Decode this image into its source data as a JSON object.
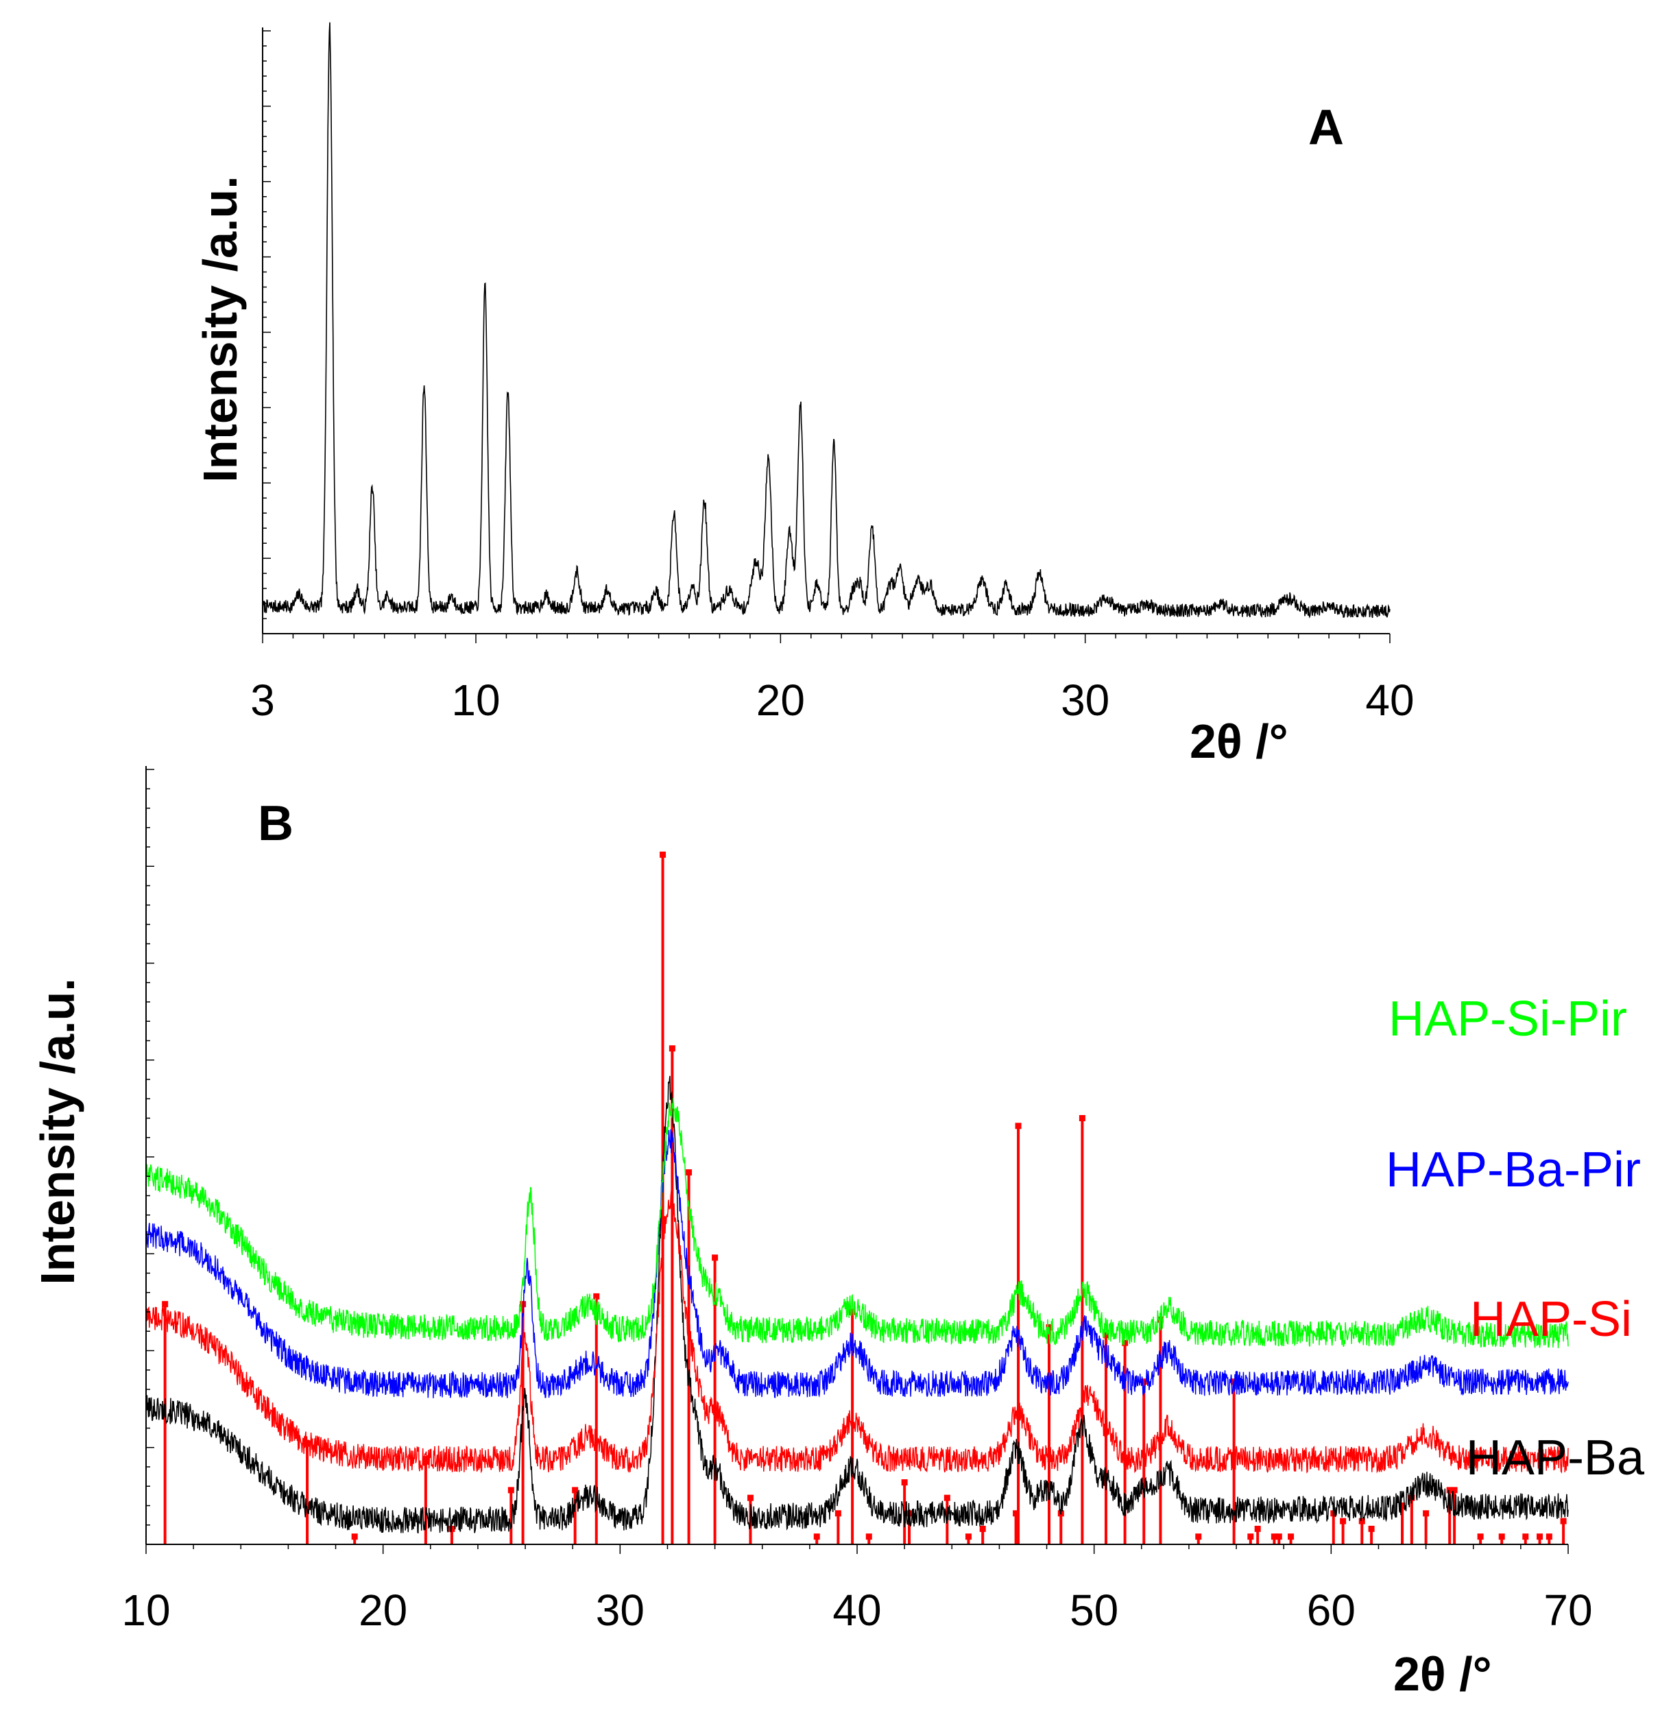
{
  "chart_data": [
    {
      "panel": "A",
      "type": "line",
      "title": "",
      "panel_label": "A",
      "xlabel": "2θ /°",
      "ylabel": "Intensity /a.u.",
      "xlim": [
        3,
        40
      ],
      "ylim": [
        0,
        100
      ],
      "x_ticks": [
        3,
        10,
        20,
        30,
        40
      ],
      "x_tick_labels": [
        "3",
        "10",
        "20",
        "30",
        "40"
      ],
      "grid": false,
      "baseline": 4.5,
      "line_color": "#000000",
      "peaks": [
        {
          "x": 4.2,
          "h": 2,
          "w": 0.1
        },
        {
          "x": 5.2,
          "h": 96,
          "w": 0.09
        },
        {
          "x": 6.1,
          "h": 3,
          "w": 0.08
        },
        {
          "x": 6.6,
          "h": 20,
          "w": 0.08
        },
        {
          "x": 7.1,
          "h": 2,
          "w": 0.08
        },
        {
          "x": 8.3,
          "h": 37,
          "w": 0.08
        },
        {
          "x": 9.2,
          "h": 2,
          "w": 0.08
        },
        {
          "x": 10.3,
          "h": 53,
          "w": 0.08
        },
        {
          "x": 11.05,
          "h": 36,
          "w": 0.08
        },
        {
          "x": 12.3,
          "h": 2,
          "w": 0.1
        },
        {
          "x": 13.3,
          "h": 6,
          "w": 0.1
        },
        {
          "x": 14.3,
          "h": 3,
          "w": 0.1
        },
        {
          "x": 15.9,
          "h": 3,
          "w": 0.1
        },
        {
          "x": 16.5,
          "h": 16,
          "w": 0.09
        },
        {
          "x": 17.1,
          "h": 4,
          "w": 0.1
        },
        {
          "x": 17.5,
          "h": 18,
          "w": 0.09
        },
        {
          "x": 18.3,
          "h": 3,
          "w": 0.15
        },
        {
          "x": 19.2,
          "h": 8,
          "w": 0.14
        },
        {
          "x": 19.6,
          "h": 25,
          "w": 0.1
        },
        {
          "x": 20.3,
          "h": 13,
          "w": 0.1
        },
        {
          "x": 20.65,
          "h": 34,
          "w": 0.09
        },
        {
          "x": 21.2,
          "h": 4,
          "w": 0.1
        },
        {
          "x": 21.75,
          "h": 28,
          "w": 0.08
        },
        {
          "x": 22.4,
          "h": 3,
          "w": 0.1
        },
        {
          "x": 22.6,
          "h": 4,
          "w": 0.1
        },
        {
          "x": 23.0,
          "h": 14,
          "w": 0.09
        },
        {
          "x": 23.6,
          "h": 4,
          "w": 0.1
        },
        {
          "x": 23.9,
          "h": 7,
          "w": 0.12
        },
        {
          "x": 24.5,
          "h": 5,
          "w": 0.15
        },
        {
          "x": 24.9,
          "h": 4,
          "w": 0.12
        },
        {
          "x": 26.6,
          "h": 5,
          "w": 0.15
        },
        {
          "x": 27.4,
          "h": 4,
          "w": 0.12
        },
        {
          "x": 28.5,
          "h": 6,
          "w": 0.13
        },
        {
          "x": 30.7,
          "h": 2,
          "w": 0.2
        },
        {
          "x": 32.0,
          "h": 1,
          "w": 0.2
        },
        {
          "x": 34.5,
          "h": 1,
          "w": 0.2
        },
        {
          "x": 36.7,
          "h": 2,
          "w": 0.25
        },
        {
          "x": 38.0,
          "h": 1,
          "w": 0.2
        }
      ]
    },
    {
      "panel": "B",
      "type": "line",
      "title": "",
      "panel_label": "B",
      "xlabel": "2θ /°",
      "ylabel": "Intensity /a.u.",
      "xlim": [
        10,
        70
      ],
      "ylim": [
        0,
        100
      ],
      "x_ticks": [
        10,
        20,
        30,
        40,
        50,
        60,
        70
      ],
      "x_tick_labels": [
        "10",
        "20",
        "30",
        "40",
        "50",
        "60",
        "70"
      ],
      "grid": false,
      "legend": "labels at right end of each trace",
      "series": [
        {
          "name": "HAP-Ba",
          "color": "#000000",
          "offset": 3,
          "end_level": 5,
          "hump": {
            "amp": 15,
            "center": 12,
            "width": 3.0
          },
          "peaks": [
            {
              "x": 26.0,
              "h": 16,
              "w": 0.2
            },
            {
              "x": 28.7,
              "h": 3,
              "w": 0.5
            },
            {
              "x": 31.9,
              "h": 40,
              "w": 0.35
            },
            {
              "x": 32.3,
              "h": 26,
              "w": 0.3
            },
            {
              "x": 33.0,
              "h": 14,
              "w": 0.35
            },
            {
              "x": 34.0,
              "h": 6,
              "w": 0.4
            },
            {
              "x": 39.8,
              "h": 6,
              "w": 0.5
            },
            {
              "x": 46.7,
              "h": 8,
              "w": 0.35
            },
            {
              "x": 48.0,
              "h": 3,
              "w": 0.4
            },
            {
              "x": 49.5,
              "h": 11,
              "w": 0.35
            },
            {
              "x": 50.5,
              "h": 4,
              "w": 0.4
            },
            {
              "x": 52.1,
              "h": 3,
              "w": 0.4
            },
            {
              "x": 53.1,
              "h": 5,
              "w": 0.4
            },
            {
              "x": 64.0,
              "h": 3,
              "w": 0.6
            }
          ]
        },
        {
          "name": "HAP-Si",
          "color": "#ff0000",
          "offset": 11,
          "end_level": 11,
          "hump": {
            "amp": 19,
            "center": 11.8,
            "width": 3.2
          },
          "peaks": [
            {
              "x": 26.0,
              "h": 16,
              "w": 0.2
            },
            {
              "x": 28.7,
              "h": 3,
              "w": 0.5
            },
            {
              "x": 31.9,
              "h": 26,
              "w": 0.35
            },
            {
              "x": 32.4,
              "h": 18,
              "w": 0.3
            },
            {
              "x": 33.0,
              "h": 12,
              "w": 0.35
            },
            {
              "x": 34.0,
              "h": 6,
              "w": 0.4
            },
            {
              "x": 39.8,
              "h": 5,
              "w": 0.5
            },
            {
              "x": 46.8,
              "h": 6,
              "w": 0.4
            },
            {
              "x": 49.7,
              "h": 8,
              "w": 0.4
            },
            {
              "x": 50.5,
              "h": 3,
              "w": 0.4
            },
            {
              "x": 53.1,
              "h": 4,
              "w": 0.4
            },
            {
              "x": 64.0,
              "h": 3,
              "w": 0.6
            }
          ]
        },
        {
          "name": "HAP-Ba-Pir",
          "color": "#0000ff",
          "offset": 20.5,
          "end_level": 21,
          "hump": {
            "amp": 20,
            "center": 11.8,
            "width": 3.2
          },
          "peaks": [
            {
              "x": 26.1,
              "h": 15,
              "w": 0.2
            },
            {
              "x": 28.7,
              "h": 3,
              "w": 0.5
            },
            {
              "x": 31.9,
              "h": 25,
              "w": 0.35
            },
            {
              "x": 32.4,
              "h": 16,
              "w": 0.3
            },
            {
              "x": 33.0,
              "h": 10,
              "w": 0.35
            },
            {
              "x": 34.2,
              "h": 4,
              "w": 0.4
            },
            {
              "x": 39.8,
              "h": 5,
              "w": 0.5
            },
            {
              "x": 46.7,
              "h": 6,
              "w": 0.4
            },
            {
              "x": 49.6,
              "h": 7,
              "w": 0.4
            },
            {
              "x": 50.5,
              "h": 3,
              "w": 0.4
            },
            {
              "x": 53.1,
              "h": 4,
              "w": 0.4
            },
            {
              "x": 64.0,
              "h": 2,
              "w": 0.6
            }
          ]
        },
        {
          "name": "HAP-Si-Pir",
          "color": "#00ff00",
          "offset": 28,
          "end_level": 27,
          "hump": {
            "amp": 20,
            "center": 11.8,
            "width": 3.2
          },
          "peaks": [
            {
              "x": 26.2,
              "h": 17,
              "w": 0.2
            },
            {
              "x": 28.6,
              "h": 3,
              "w": 0.5
            },
            {
              "x": 32.0,
              "h": 20,
              "w": 0.35
            },
            {
              "x": 32.5,
              "h": 16,
              "w": 0.35
            },
            {
              "x": 33.1,
              "h": 8,
              "w": 0.4
            },
            {
              "x": 34.0,
              "h": 4,
              "w": 0.4
            },
            {
              "x": 39.8,
              "h": 3,
              "w": 0.5
            },
            {
              "x": 46.9,
              "h": 5,
              "w": 0.4
            },
            {
              "x": 49.6,
              "h": 5,
              "w": 0.4
            },
            {
              "x": 53.2,
              "h": 3,
              "w": 0.4
            },
            {
              "x": 64.0,
              "h": 2,
              "w": 0.6
            }
          ]
        }
      ],
      "reference_pattern": {
        "color": "#ff0000",
        "lines": [
          {
            "x": 10.8,
            "h": 31
          },
          {
            "x": 16.8,
            "h": 13
          },
          {
            "x": 18.8,
            "h": 1
          },
          {
            "x": 21.8,
            "h": 11
          },
          {
            "x": 22.9,
            "h": 2
          },
          {
            "x": 25.4,
            "h": 7
          },
          {
            "x": 25.9,
            "h": 31
          },
          {
            "x": 28.1,
            "h": 7
          },
          {
            "x": 29.0,
            "h": 32
          },
          {
            "x": 31.8,
            "h": 89
          },
          {
            "x": 32.2,
            "h": 64
          },
          {
            "x": 32.9,
            "h": 48
          },
          {
            "x": 34.0,
            "h": 37
          },
          {
            "x": 35.5,
            "h": 6
          },
          {
            "x": 38.3,
            "h": 1
          },
          {
            "x": 39.2,
            "h": 4
          },
          {
            "x": 39.8,
            "h": 30
          },
          {
            "x": 40.5,
            "h": 1
          },
          {
            "x": 42.0,
            "h": 8
          },
          {
            "x": 42.2,
            "h": 4
          },
          {
            "x": 43.8,
            "h": 6
          },
          {
            "x": 44.7,
            "h": 1
          },
          {
            "x": 45.3,
            "h": 2
          },
          {
            "x": 46.7,
            "h": 4
          },
          {
            "x": 46.8,
            "h": 54
          },
          {
            "x": 48.1,
            "h": 28
          },
          {
            "x": 48.6,
            "h": 4
          },
          {
            "x": 49.5,
            "h": 55
          },
          {
            "x": 50.5,
            "h": 27
          },
          {
            "x": 51.3,
            "h": 26
          },
          {
            "x": 52.1,
            "h": 21
          },
          {
            "x": 52.8,
            "h": 29
          },
          {
            "x": 54.4,
            "h": 1
          },
          {
            "x": 55.9,
            "h": 21
          },
          {
            "x": 56.6,
            "h": 1
          },
          {
            "x": 56.9,
            "h": 2
          },
          {
            "x": 57.6,
            "h": 1
          },
          {
            "x": 57.8,
            "h": 1
          },
          {
            "x": 58.3,
            "h": 1
          },
          {
            "x": 60.1,
            "h": 4
          },
          {
            "x": 60.5,
            "h": 3
          },
          {
            "x": 61.3,
            "h": 3
          },
          {
            "x": 61.7,
            "h": 2
          },
          {
            "x": 63.0,
            "h": 5
          },
          {
            "x": 63.4,
            "h": 6
          },
          {
            "x": 64.0,
            "h": 4
          },
          {
            "x": 65.0,
            "h": 7
          },
          {
            "x": 65.2,
            "h": 7
          },
          {
            "x": 66.3,
            "h": 1
          },
          {
            "x": 67.2,
            "h": 1
          },
          {
            "x": 68.2,
            "h": 1
          },
          {
            "x": 68.8,
            "h": 1
          },
          {
            "x": 69.2,
            "h": 1
          },
          {
            "x": 69.8,
            "h": 3
          }
        ]
      }
    }
  ]
}
